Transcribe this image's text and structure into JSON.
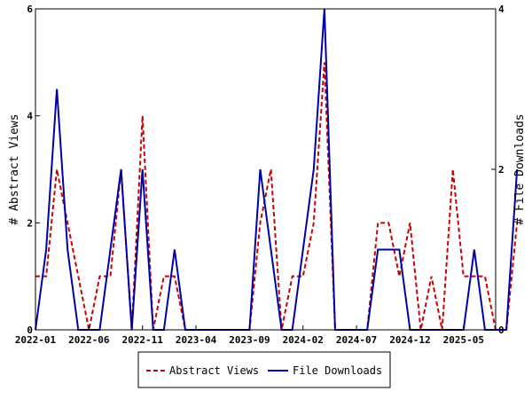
{
  "chart_data": {
    "type": "line",
    "x_labels": [
      "2022-01",
      "2022-06",
      "2022-11",
      "2023-04",
      "2023-09",
      "2024-02",
      "2024-07",
      "2024-12",
      "2025-05"
    ],
    "x_range": [
      0,
      43
    ],
    "ylabel_left": "# Abstract Views",
    "ylabel_right": "# File Downloads",
    "ylim_left": [
      0,
      6
    ],
    "ylim_right": [
      0,
      4
    ],
    "yticks_left": [
      "0",
      "2",
      "4",
      "6"
    ],
    "yticks_right": [
      "0",
      "2",
      "4"
    ],
    "legend_position": "bottom",
    "series": [
      {
        "name": "Abstract Views",
        "axis": "left",
        "color": "#cc0000",
        "dash": true,
        "values": [
          1,
          1,
          3,
          2,
          1,
          0,
          1,
          1,
          3,
          0,
          4,
          0,
          1,
          1,
          0,
          0,
          0,
          0,
          0,
          0,
          0,
          2,
          3,
          0,
          1,
          1,
          2,
          5,
          0,
          0,
          0,
          0,
          2,
          2,
          1,
          2,
          0,
          1,
          0,
          3,
          1,
          1,
          1,
          0,
          0,
          2
        ]
      },
      {
        "name": "File Downloads",
        "axis": "right",
        "color": "#0000aa",
        "dash": false,
        "values": [
          0,
          1,
          3,
          1,
          0,
          0,
          0,
          1,
          2,
          0,
          2,
          0,
          0,
          1,
          0,
          0,
          0,
          0,
          0,
          0,
          0,
          2,
          1,
          0,
          0,
          1,
          2,
          4,
          0,
          0,
          0,
          0,
          1,
          1,
          1,
          0,
          0,
          0,
          0,
          0,
          0,
          1,
          0,
          0,
          0,
          2
        ]
      }
    ]
  }
}
